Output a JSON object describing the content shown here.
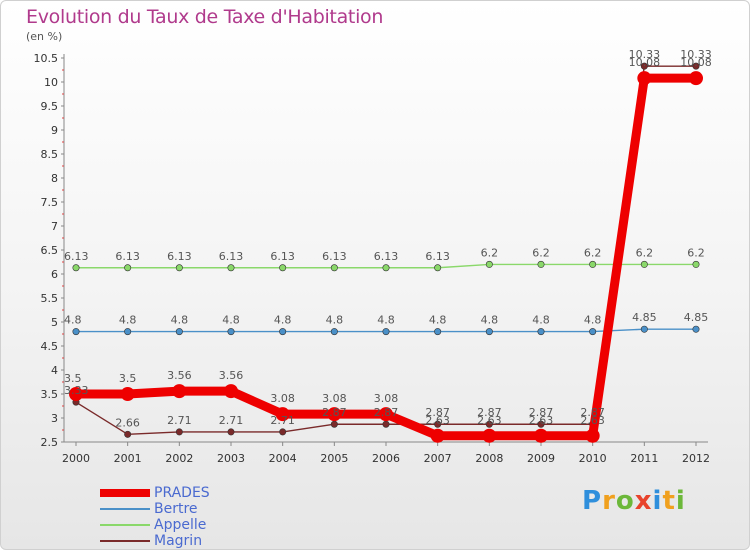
{
  "header": {
    "title": "Evolution du Taux de Taxe d'Habitation",
    "unit": "(en %)"
  },
  "logo": {
    "text": "Proxiti",
    "letters": [
      "P",
      "r",
      "o",
      "x",
      "i",
      "t",
      "i"
    ],
    "colors": [
      "#2f8fdc",
      "#f0a01e",
      "#6cb83a",
      "#e8432c",
      "#2f8fdc",
      "#f0a01e",
      "#6cb83a"
    ]
  },
  "chart_data": {
    "type": "line",
    "title": "Evolution du Taux de Taxe d'Habitation",
    "ylabel": "(en %)",
    "xlabel": "",
    "ylim": [
      2.5,
      10.5
    ],
    "ytick_step": 0.5,
    "yticks": [
      "2.5",
      "3",
      "3.5",
      "4",
      "4.5",
      "5",
      "5.5",
      "6",
      "6.5",
      "7",
      "7.5",
      "8",
      "8.5",
      "9",
      "9.5",
      "10",
      "10.5"
    ],
    "categories": [
      "2000",
      "2001",
      "2002",
      "2003",
      "2004",
      "2005",
      "2006",
      "2007",
      "2008",
      "2009",
      "2010",
      "2011",
      "2012"
    ],
    "series": [
      {
        "name": "Magrin",
        "color": "#7a2a2a",
        "weight": "thin",
        "values": [
          3.33,
          2.66,
          2.71,
          2.71,
          2.71,
          2.87,
          2.87,
          2.87,
          2.87,
          2.87,
          2.87,
          10.33,
          10.33
        ],
        "labels": [
          "3.33",
          "2.66",
          "2.71",
          "2.71",
          "2.71",
          "2.87",
          "2.87",
          "2.87",
          "2.87",
          "2.87",
          "2.87",
          "10.33",
          "10.33"
        ]
      },
      {
        "name": "Bertre",
        "color": "#4a90c8",
        "weight": "thin",
        "values": [
          4.8,
          4.8,
          4.8,
          4.8,
          4.8,
          4.8,
          4.8,
          4.8,
          4.8,
          4.8,
          4.8,
          4.85,
          4.85
        ],
        "labels": [
          "4.8",
          "4.8",
          "4.8",
          "4.8",
          "4.8",
          "4.8",
          "4.8",
          "4.8",
          "4.8",
          "4.8",
          "4.8",
          "4.85",
          "4.85"
        ]
      },
      {
        "name": "Appelle",
        "color": "#8ad86a",
        "weight": "thin",
        "values": [
          6.13,
          6.13,
          6.13,
          6.13,
          6.13,
          6.13,
          6.13,
          6.13,
          6.2,
          6.2,
          6.2,
          6.2,
          6.2
        ],
        "labels": [
          "6.13",
          "6.13",
          "6.13",
          "6.13",
          "6.13",
          "6.13",
          "6.13",
          "6.13",
          "6.2",
          "6.2",
          "6.2",
          "6.2",
          "6.2"
        ]
      },
      {
        "name": "PRADES",
        "color": "#ee0000",
        "weight": "thick",
        "values": [
          3.5,
          3.5,
          3.56,
          3.56,
          3.08,
          3.08,
          3.08,
          2.63,
          2.63,
          2.63,
          2.63,
          10.08,
          10.08
        ],
        "labels": [
          "3.5",
          "3.5",
          "3.56",
          "3.56",
          "3.08",
          "3.08",
          "3.08",
          "2.63",
          "2.63",
          "2.63",
          "2.63",
          "10.08",
          "10.08"
        ]
      }
    ],
    "legend": [
      "PRADES",
      "Bertre",
      "Appelle",
      "Magrin"
    ],
    "legend_position": "bottom-left",
    "grid": false
  }
}
